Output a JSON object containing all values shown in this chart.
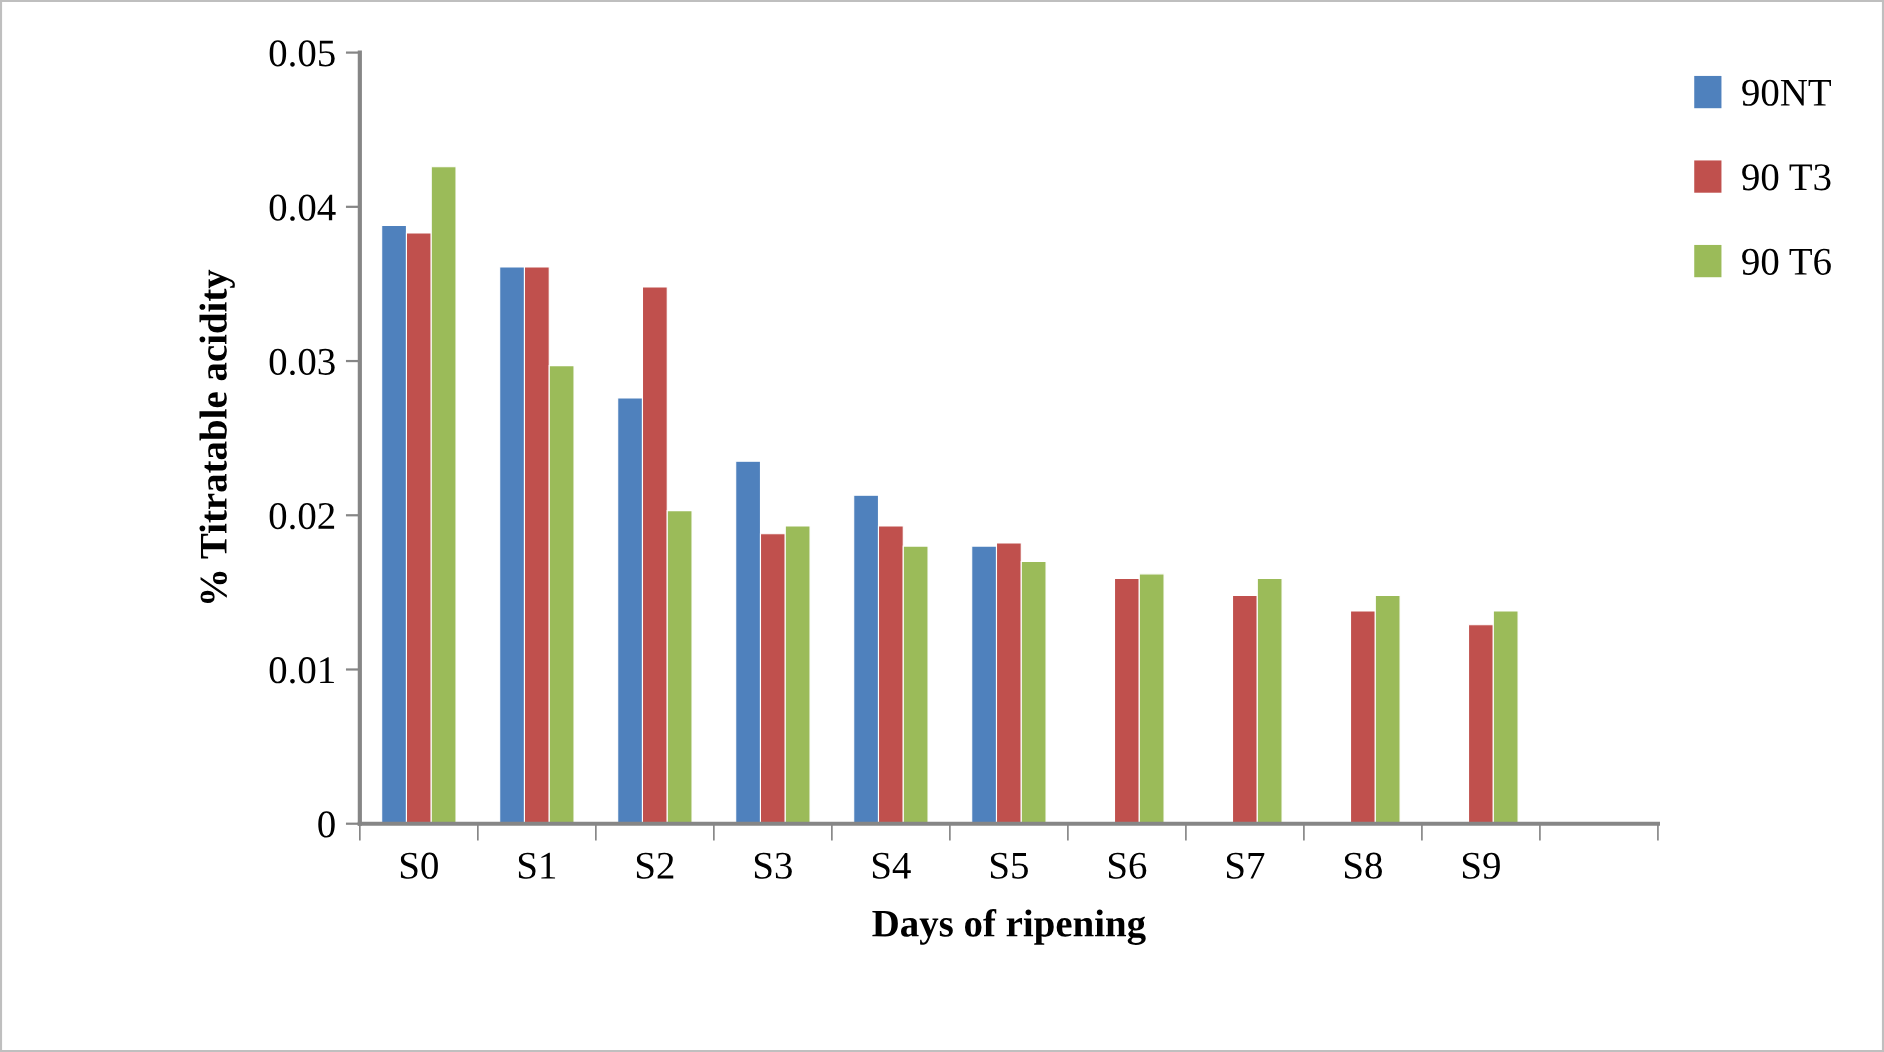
{
  "chart_data": {
    "type": "bar",
    "xlabel": "Days of ripening",
    "ylabel": "% Titratable acidity",
    "categories": [
      "S0",
      "S1",
      "S2",
      "S3",
      "S4",
      "S5",
      "S6",
      "S7",
      "S8",
      "S9",
      null
    ],
    "series": [
      {
        "name": "90NT",
        "color": "#4f81bd",
        "values": [
          0.0388,
          0.0361,
          0.0276,
          0.0235,
          0.0213,
          0.018,
          null,
          null,
          null,
          null,
          null
        ]
      },
      {
        "name": "90 T3",
        "color": "#c0504d",
        "values": [
          0.0383,
          0.0361,
          0.0348,
          0.0188,
          0.0193,
          0.0182,
          0.0159,
          0.0148,
          0.0138,
          0.0129,
          null
        ]
      },
      {
        "name": "90 T6",
        "color": "#9bbb59",
        "values": [
          0.0426,
          0.0297,
          0.0203,
          0.0193,
          0.018,
          0.017,
          0.0162,
          0.0159,
          0.0148,
          0.0138,
          null
        ]
      }
    ],
    "ylim": [
      0,
      0.05
    ],
    "yticks": [
      0,
      0.01,
      0.02,
      0.03,
      0.04,
      0.05
    ],
    "grid": false,
    "legend": "top right"
  }
}
